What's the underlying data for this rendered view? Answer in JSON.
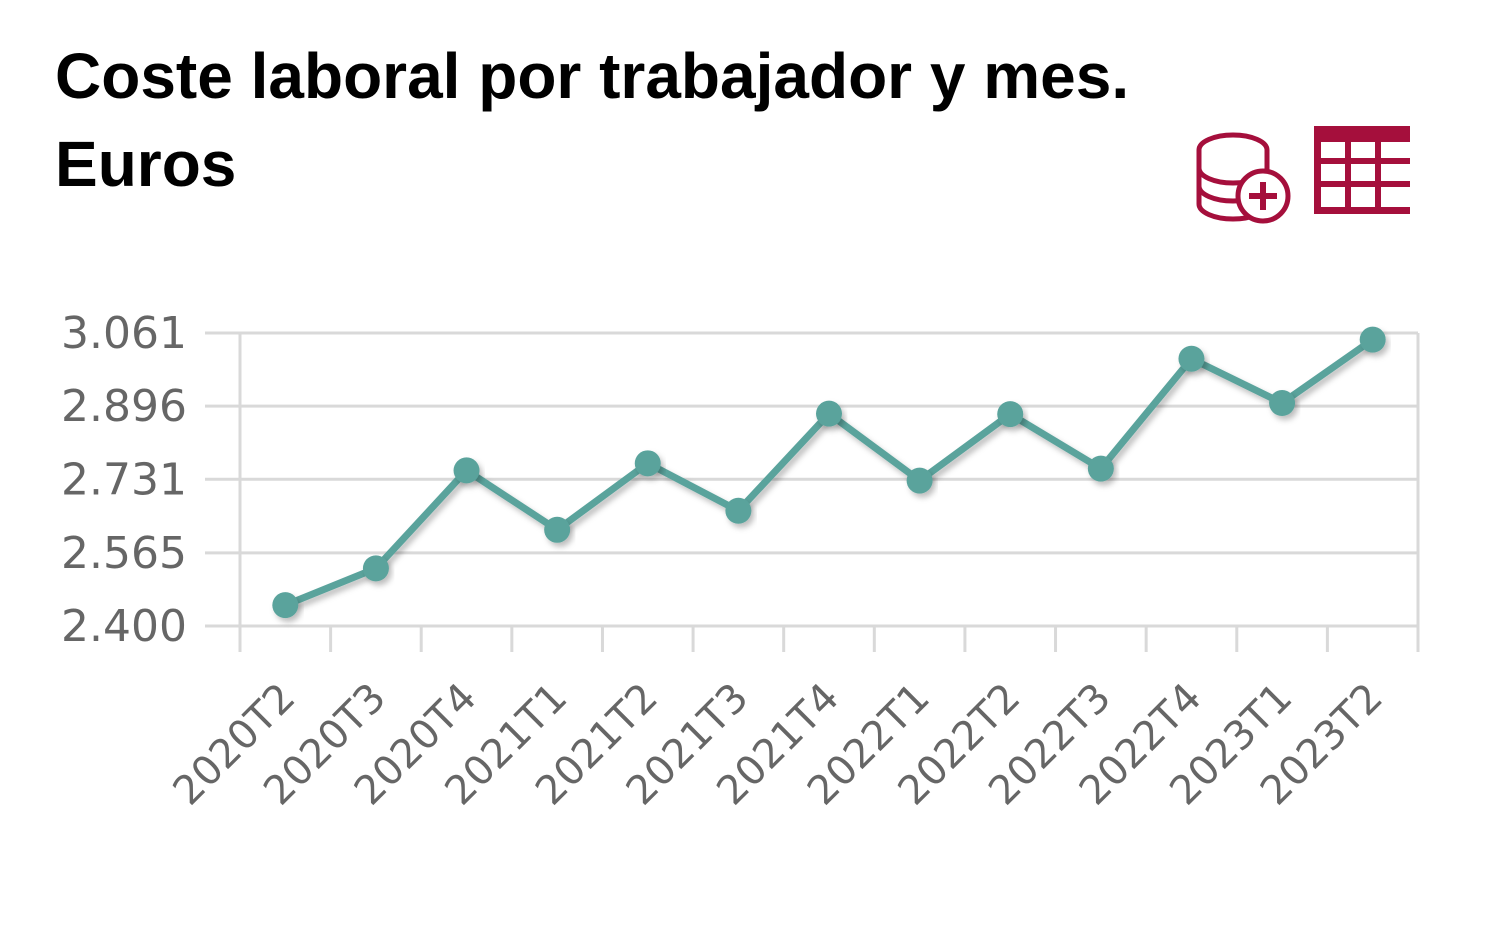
{
  "header": {
    "title_line1": "Coste laboral por trabajador y mes.",
    "title_line2": "Euros"
  },
  "toolbar": {
    "add_data_icon": "database-plus-icon",
    "table_icon": "table-icon",
    "accent_color": "#a50f3c"
  },
  "chart_data": {
    "type": "line",
    "title": "Coste laboral por trabajador y mes. Euros",
    "xlabel": "",
    "ylabel": "",
    "categories": [
      "2020T2",
      "2020T3",
      "2020T4",
      "2021T1",
      "2021T2",
      "2021T3",
      "2021T4",
      "2022T1",
      "2022T2",
      "2022T3",
      "2022T4",
      "2023T1",
      "2023T2"
    ],
    "series": [
      {
        "values": [
          2447,
          2530,
          2751,
          2617,
          2767,
          2660,
          2879,
          2728,
          2878,
          2755,
          3003,
          2903,
          3046
        ]
      }
    ],
    "y_ticks": [
      "2.400",
      "2.565",
      "2.731",
      "2.896",
      "3.061"
    ],
    "y_tick_values": [
      2400,
      2565,
      2731,
      2896,
      3061
    ],
    "ylim": [
      2400,
      3061
    ],
    "grid": true,
    "legend": "none",
    "line_color": "#5aa39c",
    "grid_color": "#d9d9d9"
  }
}
